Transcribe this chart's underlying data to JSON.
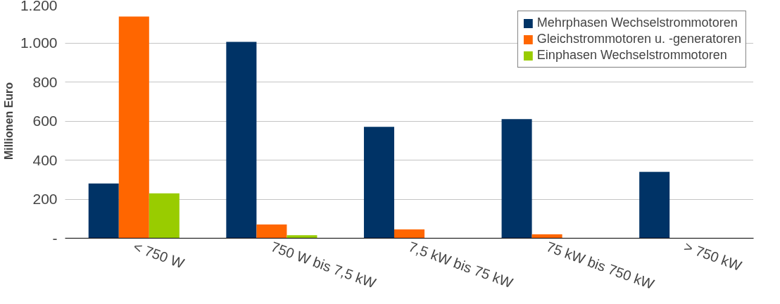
{
  "chart_data": {
    "type": "bar",
    "ylabel": "Millionen Euro",
    "categories": [
      "< 750 W",
      "750 W bis 7,5 kW",
      "7,5 kW bis 75 kW",
      "75 kW bis 750 kW",
      "> 750 kW"
    ],
    "series": [
      {
        "name": "Mehrphasen Wechselstrommotoren",
        "color": "#003366",
        "values": [
          280,
          1005,
          570,
          610,
          340
        ]
      },
      {
        "name": "Gleichstrommotoren u. -generatoren",
        "color": "#ff6600",
        "values": [
          1135,
          70,
          45,
          20,
          0
        ]
      },
      {
        "name": "Einphasen Wechselstrommotoren",
        "color": "#99cc00",
        "values": [
          230,
          15,
          0,
          0,
          0
        ]
      }
    ],
    "ylim": [
      0,
      1200
    ],
    "yticks": [
      {
        "value": 0,
        "label": "-"
      },
      {
        "value": 200,
        "label": "200"
      },
      {
        "value": 400,
        "label": "400"
      },
      {
        "value": 600,
        "label": "600"
      },
      {
        "value": 800,
        "label": "800"
      },
      {
        "value": 1000,
        "label": "1.000"
      },
      {
        "value": 1200,
        "label": "1.200"
      }
    ],
    "grid": "y",
    "legend": "top right"
  }
}
